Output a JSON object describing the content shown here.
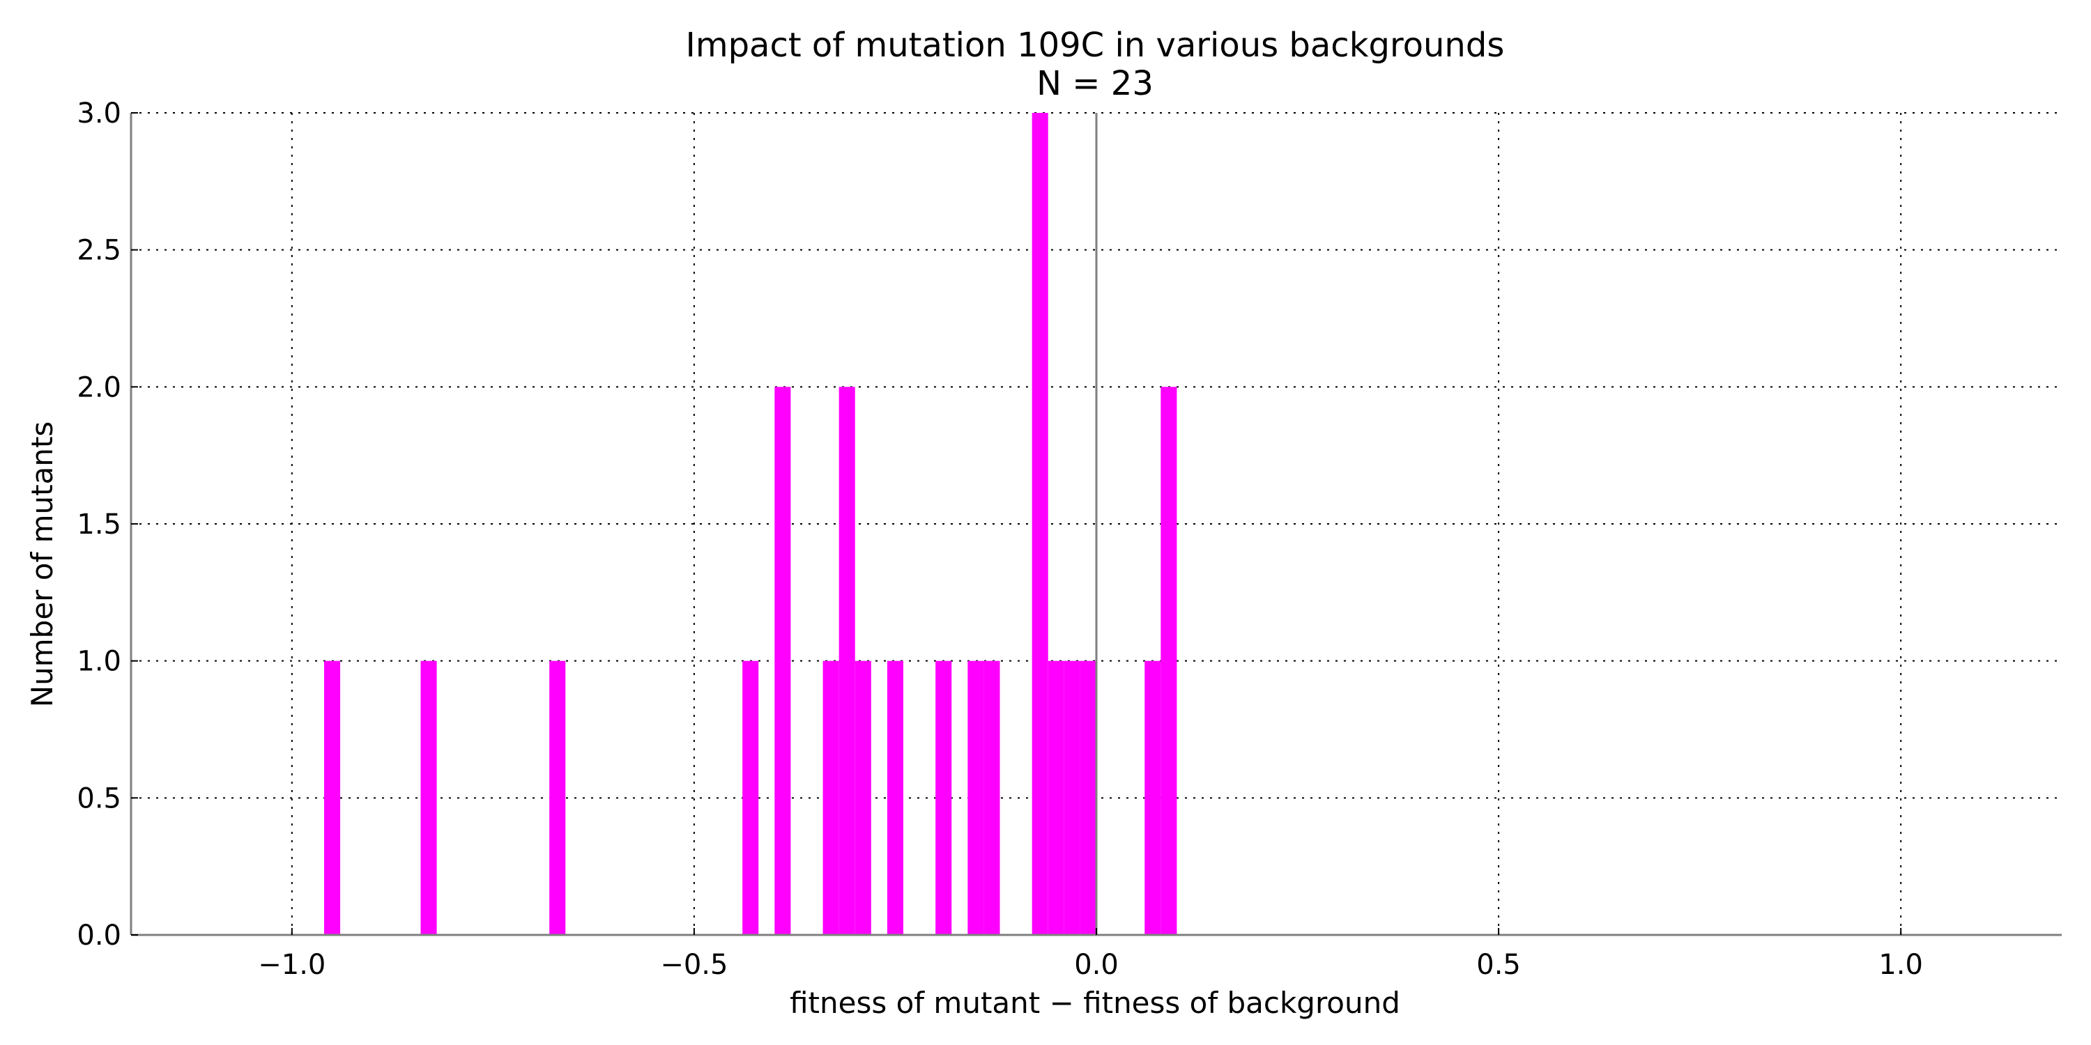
{
  "chart_data": {
    "type": "bar",
    "title": "Impact of mutation 109C in various backgrounds",
    "subtitle": "N = 23",
    "xlabel": "fitness of mutant  −  fitness of background",
    "ylabel": "Number of mutants",
    "xlim": [
      -1.2,
      1.2
    ],
    "ylim": [
      0,
      3.0
    ],
    "grid": true,
    "bin_width": 0.02,
    "bar_color": "#ff00ff",
    "x_ticks": [
      -1.0,
      -0.5,
      0.0,
      0.5,
      1.0
    ],
    "x_tick_labels": [
      "−1.0",
      "−0.5",
      "0.0",
      "0.5",
      "1.0"
    ],
    "y_ticks": [
      0.0,
      0.5,
      1.0,
      1.5,
      2.0,
      2.5,
      3.0
    ],
    "y_tick_labels": [
      "0.0",
      "0.5",
      "1.0",
      "1.5",
      "2.0",
      "2.5",
      "3.0"
    ],
    "zero_line_x": 0.0,
    "bins": [
      {
        "x": -0.96,
        "count": 1
      },
      {
        "x": -0.84,
        "count": 1
      },
      {
        "x": -0.68,
        "count": 1
      },
      {
        "x": -0.44,
        "count": 1
      },
      {
        "x": -0.4,
        "count": 2
      },
      {
        "x": -0.34,
        "count": 1
      },
      {
        "x": -0.32,
        "count": 2
      },
      {
        "x": -0.3,
        "count": 1
      },
      {
        "x": -0.26,
        "count": 1
      },
      {
        "x": -0.2,
        "count": 1
      },
      {
        "x": -0.16,
        "count": 1
      },
      {
        "x": -0.14,
        "count": 1
      },
      {
        "x": -0.08,
        "count": 3
      },
      {
        "x": -0.06,
        "count": 1
      },
      {
        "x": -0.04,
        "count": 1
      },
      {
        "x": -0.02,
        "count": 1
      },
      {
        "x": 0.06,
        "count": 1
      },
      {
        "x": 0.08,
        "count": 2
      }
    ]
  }
}
